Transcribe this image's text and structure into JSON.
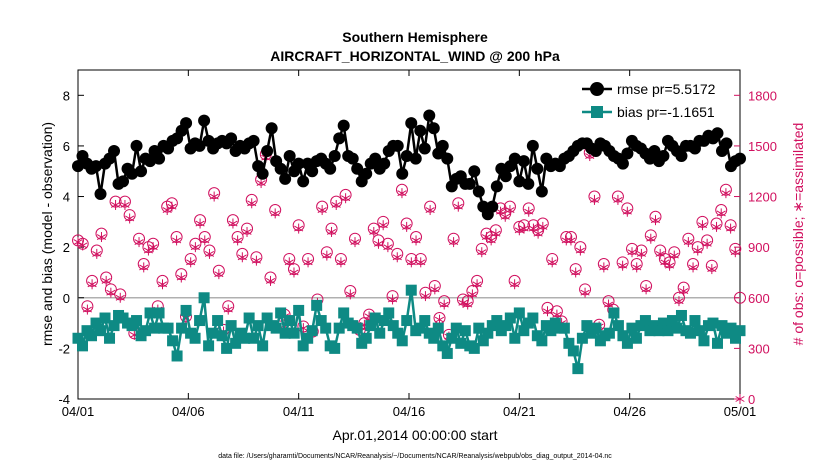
{
  "chart_data": {
    "type": "line",
    "title": "Southern Hemisphere",
    "subtitle": "AIRCRAFT_HORIZONTAL_WIND @ 200 hPa",
    "xlabel": "Apr.01,2014 00:00:00 start",
    "ylabel_left": "rmse and bias (model - observation)",
    "ylabel_right": "# of obs: o=possible; ∗=assimilated",
    "x_ticks": [
      "04/01",
      "04/06",
      "04/11",
      "04/16",
      "04/21",
      "04/26",
      "05/01"
    ],
    "y_ticks_left": [
      "-4",
      "-2",
      "0",
      "2",
      "4",
      "6",
      "8"
    ],
    "y_ticks_right": [
      "0",
      "300",
      "600",
      "900",
      "1200",
      "1500",
      "1800"
    ],
    "ylim_left": [
      -4,
      9
    ],
    "ylim_right": [
      0,
      1950
    ],
    "xlim_days": [
      0,
      30
    ],
    "grid": false,
    "zero_line": true,
    "legend_position": "top-right",
    "colors": {
      "rmse": "#000000",
      "bias": "#0e8a84",
      "obs": "#d1105f",
      "zero_line": "#b0b0b0"
    },
    "series": [
      {
        "name": "rmse pr=5.5172",
        "axis": "left",
        "marker": "circle",
        "values": [
          5.2,
          5.6,
          5.3,
          5.1,
          5.2,
          4.1,
          5.3,
          5.5,
          5.8,
          4.5,
          4.6,
          5.1,
          4.9,
          6.0,
          5.0,
          5.5,
          5.4,
          5.8,
          5.5,
          6.0,
          5.9,
          6.2,
          6.3,
          6.6,
          6.9,
          5.9,
          6.1,
          6.0,
          7.0,
          6.2,
          5.9,
          6.1,
          6.2,
          6.1,
          6.3,
          5.8,
          6.0,
          5.9,
          6.1,
          6.2,
          5.2,
          4.9,
          5.8,
          6.7,
          5.4,
          5.1,
          4.7,
          5.6,
          5.0,
          5.3,
          4.6,
          5.3,
          5.0,
          5.4,
          5.5,
          5.3,
          5.1,
          5.6,
          6.3,
          6.8,
          5.6,
          5.5,
          5.1,
          4.6,
          4.9,
          5.3,
          5.5,
          5.1,
          5.3,
          5.8,
          6.0,
          6.0,
          4.9,
          5.6,
          6.9,
          5.5,
          6.6,
          5.9,
          7.2,
          6.7,
          5.7,
          6.0,
          5.5,
          4.4,
          4.7,
          4.8,
          4.5,
          4.5,
          5.0,
          4.2,
          3.6,
          3.3,
          3.6,
          4.4,
          5.1,
          4.8,
          5.2,
          5.5,
          4.6,
          5.4,
          4.5,
          6.0,
          5.1,
          4.2,
          5.5,
          5.2,
          5.3,
          5.2,
          5.5,
          5.6,
          5.8,
          6.0,
          6.1,
          6.1,
          5.9,
          5.8,
          6.1,
          6.0,
          5.8,
          5.6,
          5.5,
          5.3,
          5.7,
          6.2,
          6.0,
          5.9,
          5.7,
          5.5,
          5.8,
          5.4,
          5.6,
          6.2,
          6.0,
          5.8,
          5.6,
          6.0,
          6.0,
          5.9,
          6.2,
          6.2,
          6.4,
          6.3,
          6.5,
          5.8,
          6.1,
          5.2,
          5.4,
          5.5
        ]
      },
      {
        "name": "bias pr=-1.1651",
        "axis": "left",
        "marker": "square",
        "values": [
          -1.6,
          -1.9,
          -1.3,
          -1.5,
          -1.0,
          -1.3,
          -0.8,
          -1.6,
          -1.1,
          -0.7,
          -0.8,
          -1.0,
          -1.1,
          -0.9,
          -1.5,
          -1.3,
          -0.6,
          -1.2,
          -0.6,
          -1.2,
          -1.2,
          -1.7,
          -2.3,
          -1.2,
          -0.5,
          -1.4,
          -1.6,
          -0.9,
          0.0,
          -1.9,
          -1.4,
          -0.9,
          -1.5,
          -2.0,
          -1.1,
          -1.8,
          -1.4,
          -1.6,
          -0.8,
          -1.6,
          -1.1,
          -1.9,
          -0.8,
          -1.1,
          -1.2,
          -0.6,
          -1.4,
          -0.9,
          -1.4,
          -0.5,
          -1.9,
          -1.6,
          -1.3,
          -0.3,
          -0.9,
          -1.2,
          -1.9,
          -2.0,
          -1.2,
          -0.6,
          -1.0,
          -1.1,
          -1.2,
          -1.8,
          -1.6,
          -1.1,
          -0.8,
          -1.4,
          -0.9,
          -0.6,
          -1.1,
          -1.4,
          -1.7,
          -0.9,
          0.3,
          -1.3,
          -1.2,
          -0.9,
          -1.4,
          -1.6,
          -1.2,
          -1.9,
          -2.2,
          -1.6,
          -1.2,
          -1.8,
          -1.3,
          -1.9,
          -2.0,
          -1.2,
          -1.7,
          -1.4,
          -1.1,
          -0.9,
          -1.3,
          -1.1,
          -0.8,
          -1.6,
          -0.6,
          -1.3,
          -1.0,
          -0.8,
          -1.5,
          -1.7,
          -1.1,
          -1.3,
          -1.0,
          -1.2,
          -1.2,
          -1.8,
          -2.1,
          -2.8,
          -1.6,
          -1.1,
          -1.4,
          -1.2,
          -1.7,
          -1.5,
          -1.4,
          -0.6,
          -1.1,
          -1.5,
          -1.8,
          -1.2,
          -1.6,
          -1.1,
          -0.9,
          -1.3,
          -1.1,
          -1.3,
          -1.0,
          -1.3,
          -0.9,
          -1.2,
          -0.7,
          -1.3,
          -1.4,
          -0.9,
          -1.3,
          -1.7,
          -1.1,
          -1.0,
          -1.8,
          -1.1,
          -1.4,
          -1.2,
          -1.6,
          -1.3
        ]
      },
      {
        "name": "possible",
        "axis": "right",
        "marker": "circle-open",
        "values": [
          940,
          920,
          550,
          700,
          880,
          980,
          720,
          650,
          1170,
          620,
          1170,
          1090,
          390,
          950,
          800,
          900,
          920,
          550,
          700,
          1140,
          1160,
          960,
          740,
          490,
          830,
          920,
          1060,
          960,
          880,
          1220,
          760,
          410,
          550,
          1060,
          960,
          860,
          1010,
          1180,
          840,
          1300,
          1450,
          720,
          1120,
          430,
          500,
          830,
          770,
          1030,
          430,
          830,
          400,
          590,
          1140,
          870,
          1010,
          1170,
          830,
          1210,
          640,
          950,
          410,
          450,
          500,
          1010,
          940,
          1050,
          920,
          610,
          860,
          1240,
          1040,
          830,
          960,
          830,
          630,
          1140,
          670,
          480,
          580,
          380,
          950,
          1160,
          590,
          580,
          640,
          700,
          890,
          980,
          960,
          1000,
          1130,
          1100,
          1140,
          700,
          1020,
          1030,
          1130,
          1030,
          1000,
          1040,
          540,
          830,
          520,
          460,
          960,
          960,
          770,
          900,
          650,
          1460,
          1200,
          440,
          800,
          580,
          530,
          1200,
          810,
          1130,
          890,
          800,
          880,
          670,
          970,
          1080,
          880,
          830,
          810,
          870,
          600,
          660,
          950,
          800,
          900,
          1050,
          940,
          790,
          1040,
          1120,
          1240,
          1030,
          890,
          600
        ]
      },
      {
        "name": "assimilated",
        "axis": "right",
        "marker": "asterisk",
        "values": [
          930,
          910,
          530,
          680,
          860,
          960,
          700,
          630,
          1150,
          600,
          1150,
          1070,
          380,
          930,
          780,
          880,
          900,
          530,
          680,
          1120,
          1140,
          940,
          720,
          480,
          810,
          900,
          1040,
          940,
          860,
          1200,
          740,
          400,
          530,
          1040,
          940,
          840,
          990,
          1160,
          820,
          1280,
          1430,
          700,
          1100,
          420,
          490,
          810,
          750,
          1010,
          420,
          810,
          390,
          570,
          1120,
          850,
          990,
          1150,
          810,
          1190,
          620,
          930,
          400,
          440,
          490,
          990,
          920,
          1030,
          900,
          590,
          840,
          1220,
          1020,
          810,
          940,
          810,
          610,
          1120,
          650,
          470,
          560,
          370,
          930,
          1140,
          570,
          560,
          620,
          680,
          870,
          960,
          940,
          980,
          1110,
          1080,
          1120,
          680,
          1000,
          1010,
          1110,
          1010,
          980,
          1020,
          520,
          810,
          500,
          450,
          940,
          940,
          750,
          880,
          630,
          1440,
          1180,
          430,
          780,
          560,
          510,
          1180,
          790,
          1110,
          870,
          780,
          860,
          650,
          950,
          1060,
          860,
          810,
          790,
          850,
          580,
          640,
          930,
          780,
          880,
          1030,
          920,
          770,
          1020,
          1100,
          1220,
          1010,
          870,
          0
        ]
      }
    ]
  },
  "footer": "data file: /Users/gharamti/Documents/NCAR/Reanalysis/~/Documents/NCAR/Reanalysis/webpub/obs_diag_output_2014-04.nc"
}
